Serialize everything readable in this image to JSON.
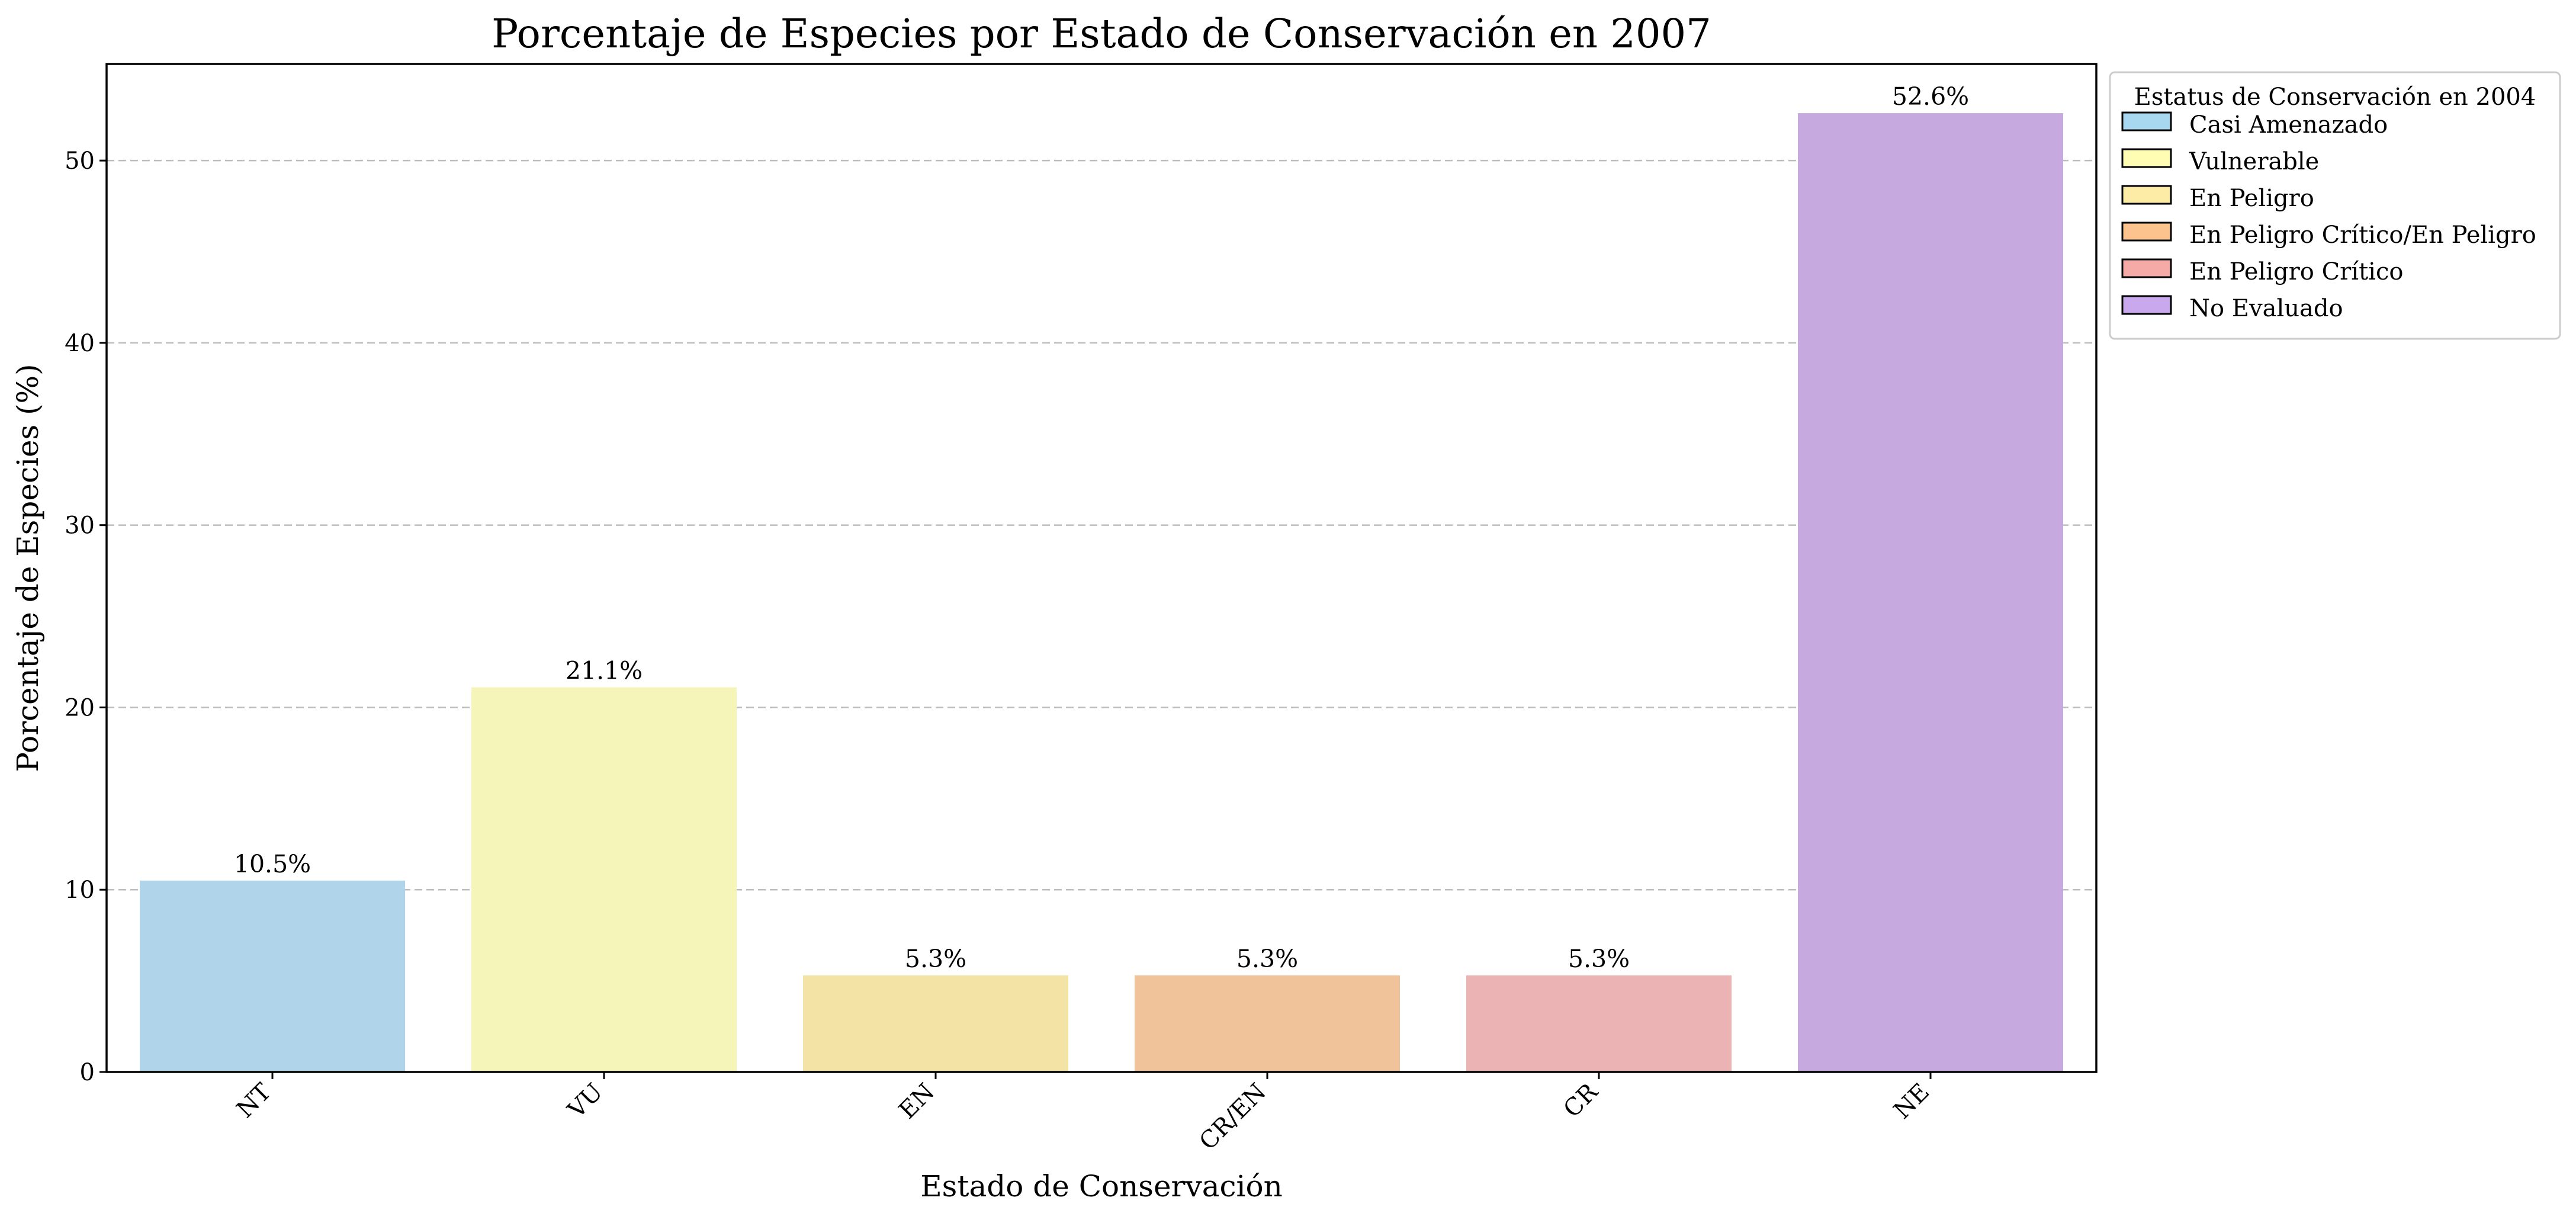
{
  "chart_data": {
    "type": "bar",
    "title": "Porcentaje de Especies por Estado de Conservación en 2007",
    "xlabel": "Estado de Conservación",
    "ylabel": "Porcentaje de Especies (%)",
    "categories": [
      "NT",
      "VU",
      "EN",
      "CR/EN",
      "CR",
      "NE"
    ],
    "values": [
      10.5,
      21.1,
      5.3,
      5.3,
      5.3,
      52.6
    ],
    "data_labels": [
      "10.5%",
      "21.1%",
      "5.3%",
      "5.3%",
      "5.3%",
      "52.6%"
    ],
    "bar_colors": [
      "#b0d4ea",
      "#f6f5b9",
      "#f3e4a6",
      "#f0c39b",
      "#ebb3b3",
      "#c6aadf"
    ],
    "ylim": [
      0,
      55.3
    ],
    "yticks": [
      0,
      10,
      20,
      30,
      40,
      50
    ],
    "ytick_labels": [
      "0",
      "10",
      "20",
      "30",
      "40",
      "50"
    ],
    "grid": "y-dashed",
    "legend": {
      "title": "Estatus de Conservación en 2004",
      "position": "outside-top-right",
      "entries": [
        {
          "label": "Casi Amenazado",
          "color": "#a8d8f0"
        },
        {
          "label": "Vulnerable",
          "color": "#fffdb4"
        },
        {
          "label": "En Peligro",
          "color": "#fdeca6"
        },
        {
          "label": "En Peligro Crítico/En Peligro",
          "color": "#fcc38f"
        },
        {
          "label": "En Peligro Crítico",
          "color": "#f5aaa8"
        },
        {
          "label": "No Evaluado",
          "color": "#c9a8ee"
        }
      ]
    }
  }
}
